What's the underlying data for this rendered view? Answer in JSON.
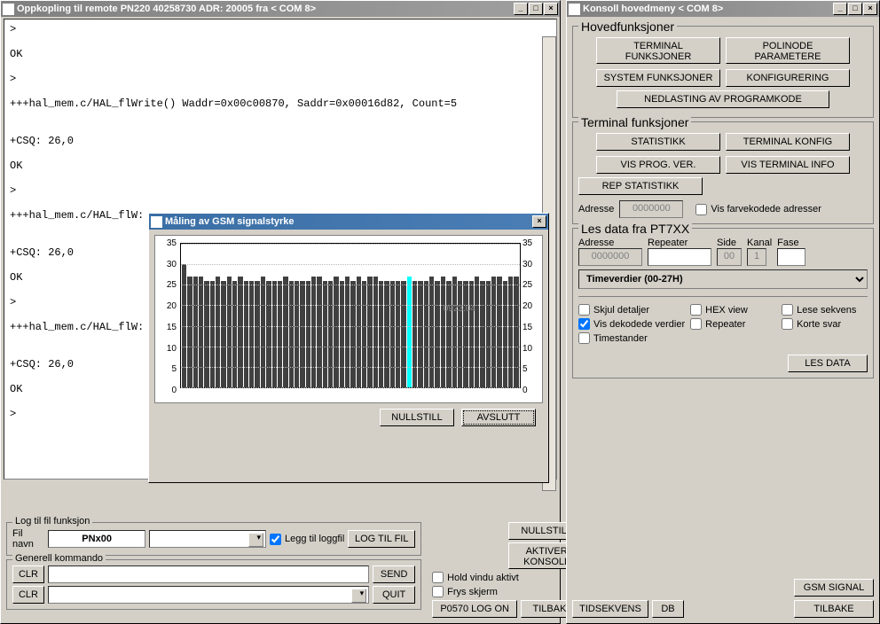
{
  "colors": {
    "window_bg": "#d4d0c8",
    "titlebar_active": "#3a6ea5",
    "titlebar_inactive": "#808080",
    "bar_color": "#404040",
    "bar_highlight": "#00ffff",
    "chart_bg": "#ffffff"
  },
  "left_window": {
    "title": "Oppkopling til remote PN220 40258730 ADR: 20005  fra  < COM 8>",
    "console_lines": [
      ">",
      "",
      "OK",
      "",
      ">",
      "",
      "+++hal_mem.c/HAL_flWrite() Waddr=0x00c00870, Saddr=0x00016d82, Count=5",
      "",
      "",
      "+CSQ: 26,0",
      "",
      "OK",
      "",
      ">",
      "",
      "+++hal_mem.c/HAL_flW:",
      "",
      "",
      "+CSQ: 26,0",
      "",
      "OK",
      "",
      ">",
      "",
      "+++hal_mem.c/HAL_flW:",
      "",
      "",
      "+CSQ: 26,0",
      "",
      "OK",
      "",
      ">"
    ],
    "log_group": {
      "title": "Log til fil funksjon",
      "label_filename": "Fil navn",
      "filename_value": "PNx00",
      "chk_append": "Legg til loggfil",
      "btn_logtofile": "LOG TIL FIL"
    },
    "gen_cmd": {
      "title": "Generell kommando",
      "btn_clr": "CLR",
      "btn_send": "SEND",
      "btn_quit": "QUIT"
    },
    "btn_nullstill": "NULLSTILL",
    "btn_aktiver_konsoll": "AKTIVER KONSOLL",
    "chk_hold_vindu": "Hold vindu aktivt",
    "chk_frys_skjerm": "Frys skjerm",
    "btn_p0570": "P0570 LOG ON",
    "btn_tilbake": "TILBAKE"
  },
  "dialog": {
    "title": "Måling av GSM signalstyrke",
    "y_max": 35,
    "y_step": 5,
    "bars": [
      30,
      27,
      27,
      27,
      26,
      26,
      27,
      26,
      27,
      26,
      27,
      26,
      26,
      26,
      27,
      26,
      26,
      26,
      27,
      26,
      26,
      26,
      26,
      27,
      27,
      26,
      26,
      27,
      26,
      27,
      26,
      27,
      26,
      27,
      27,
      26,
      26,
      26,
      26,
      26,
      27,
      26,
      26,
      26,
      27,
      26,
      27,
      26,
      27,
      26,
      26,
      26,
      27,
      26,
      26,
      27,
      27,
      26,
      27,
      27
    ],
    "highlight_index": 40,
    "label_on_chart": "0923.04",
    "btn_nullstill": "NULLSTILL",
    "btn_avslutt": "AVSLUTT"
  },
  "right_window": {
    "title": "Konsoll hovedmeny  < COM 8>",
    "group_hoved": {
      "title": "Hovedfunksjoner",
      "btn_terminal_funk": "TERMINAL FUNKSJONER",
      "btn_polinode": "POLINODE PARAMETERE",
      "btn_system": "SYSTEM FUNKSJONER",
      "btn_konfig": "KONFIGURERING",
      "btn_nedlasting": "NEDLASTING AV PROGRAMKODE"
    },
    "group_terminal": {
      "title": "Terminal funksjoner",
      "btn_statistikk": "STATISTIKK",
      "btn_term_konfig": "TERMINAL KONFIG",
      "btn_vis_prog": "VIS PROG. VER.",
      "btn_vis_term_info": "VIS TERMINAL INFO",
      "btn_rep_stat": "REP STATISTIKK",
      "label_adresse": "Adresse",
      "adresse_value": "0000000",
      "chk_fargekode": "Vis farvekodede adresser"
    },
    "group_lesdata": {
      "title": "Les data fra PT7XX",
      "label_adresse": "Adresse",
      "label_repeater": "Repeater",
      "label_side": "Side",
      "label_kanal": "Kanal",
      "label_fase": "Fase",
      "val_adresse": "0000000",
      "val_side": "00",
      "val_kanal": "1",
      "dropdown_value": "Timeverdier (00-27H)",
      "chk_skjul": "Skjul detaljer",
      "chk_hex": "HEX view",
      "chk_lese": "Lese sekvens",
      "chk_vis_dekod": "Vis dekodede verdier",
      "chk_repeater": "Repeater",
      "chk_korte": "Korte svar",
      "chk_timestander": "Timestander",
      "btn_les_data": "LES DATA"
    },
    "btn_tidsekvens": "TIDSEKVENS",
    "btn_db": "DB",
    "btn_gsm_signal": "GSM SIGNAL",
    "btn_tilbake": "TILBAKE"
  }
}
